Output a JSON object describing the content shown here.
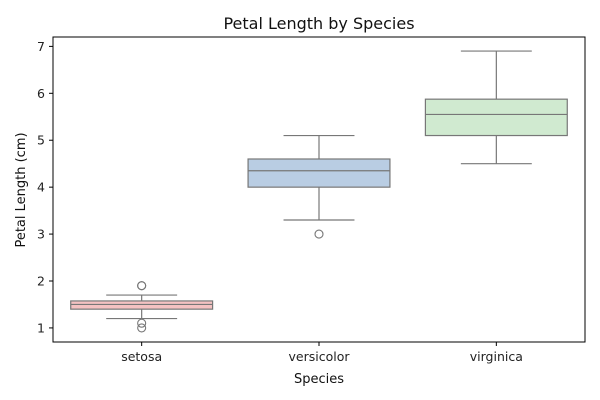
{
  "chart_data": {
    "type": "box",
    "title": "Petal Length by Species",
    "xlabel": "Species",
    "ylabel": "Petal Length (cm)",
    "ylim": [
      0.7,
      7.2
    ],
    "yticks": [
      1,
      2,
      3,
      4,
      5,
      6,
      7
    ],
    "grid": false,
    "categories": [
      "setosa",
      "versicolor",
      "virginica"
    ],
    "boxes": [
      {
        "category": "setosa",
        "whisker_low": 1.2,
        "q1": 1.4,
        "median": 1.5,
        "q3": 1.575,
        "whisker_high": 1.7,
        "outliers": [
          1.0,
          1.1,
          1.9,
          1.9
        ],
        "color": "#f4c2c2"
      },
      {
        "category": "versicolor",
        "whisker_low": 3.3,
        "q1": 4.0,
        "median": 4.35,
        "q3": 4.6,
        "whisker_high": 5.1,
        "outliers": [
          3.0
        ],
        "color": "#b9cde3"
      },
      {
        "category": "virginica",
        "whisker_low": 4.5,
        "q1": 5.1,
        "median": 5.55,
        "q3": 5.875,
        "whisker_high": 6.9,
        "outliers": [],
        "color": "#d0ead0"
      }
    ],
    "line_color": "#777777"
  }
}
